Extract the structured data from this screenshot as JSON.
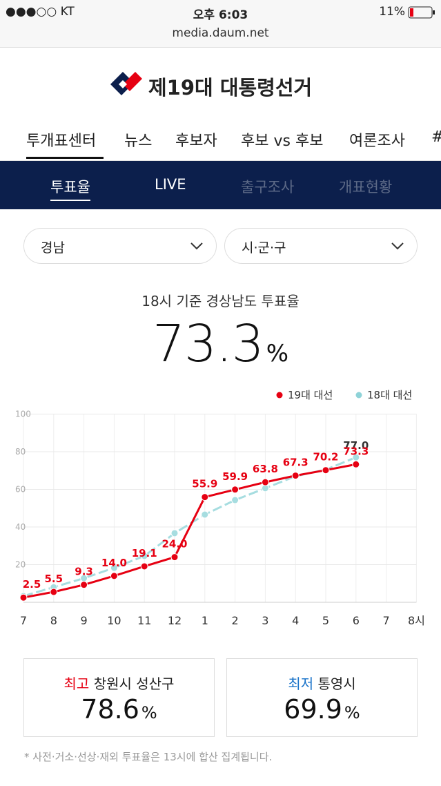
{
  "status_bar": {
    "carrier": "●●●○○ KT",
    "time": "오후 6:03",
    "battery": "11%",
    "url": "media.daum.net"
  },
  "header": {
    "title": "제19대 대통령선거"
  },
  "nav": [
    "투개표센터",
    "뉴스",
    "후보자",
    "후보 vs 후보",
    "여론조사",
    "#"
  ],
  "subnav": [
    "투표율",
    "LIVE",
    "출구조사",
    "개표현황"
  ],
  "filters": [
    "경남",
    "시·군·구"
  ],
  "summary": {
    "subtitle": "18시 기준 경상남도 투표율",
    "value": "73.3",
    "unit": "%"
  },
  "chart_data": {
    "type": "line",
    "categories": [
      "7",
      "8",
      "9",
      "10",
      "11",
      "12",
      "1",
      "2",
      "3",
      "4",
      "5",
      "6",
      "7",
      "8시"
    ],
    "series": [
      {
        "name": "19대 대선",
        "color": "#e60012",
        "values": [
          2.5,
          5.5,
          9.3,
          14.0,
          19.1,
          24.0,
          55.9,
          59.9,
          63.8,
          67.3,
          70.2,
          73.3,
          null,
          null
        ],
        "value_labels": [
          "2.5",
          "5.5",
          "9.3",
          "14.0",
          "19.1",
          "24.0",
          "55.9",
          "59.9",
          "63.8",
          "67.3",
          "70.2",
          "73.3",
          null,
          null
        ]
      },
      {
        "name": "18대 대선",
        "color": "#a6dde0",
        "values": [
          3.3,
          8,
          12.8,
          18.3,
          24.6,
          36.7,
          46.6,
          54.3,
          60.6,
          67,
          70.5,
          77.0,
          null,
          null
        ],
        "value_labels": [
          null,
          null,
          null,
          null,
          null,
          null,
          null,
          null,
          null,
          null,
          null,
          "77.0",
          null,
          null
        ]
      }
    ],
    "ylim": [
      0,
      100
    ],
    "yticks": [
      20,
      40,
      60,
      80,
      100
    ],
    "grid": true
  },
  "cards": [
    {
      "tag": "최고",
      "name": "창원시 성산구",
      "value": "78.6",
      "unit": "%"
    },
    {
      "tag": "최저",
      "name": "통영시",
      "value": "69.9",
      "unit": "%"
    }
  ],
  "note": "* 사전·거소·선상·재외 투표율은 13시에 합산 집계됩니다."
}
